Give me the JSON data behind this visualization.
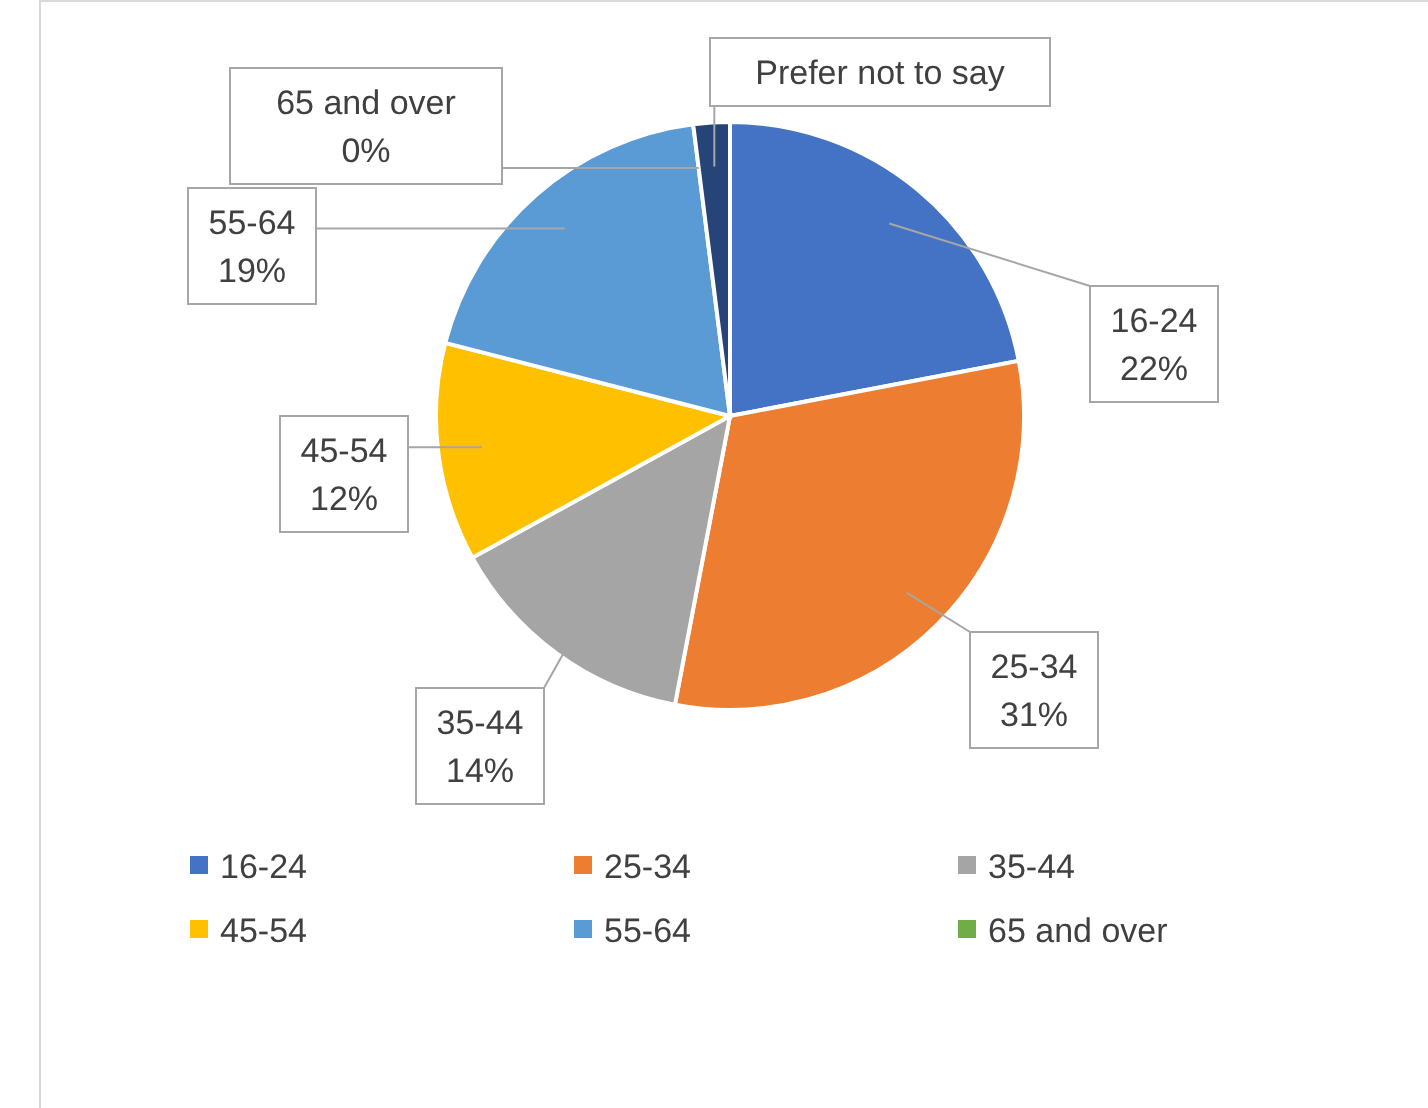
{
  "chart_data": {
    "type": "pie",
    "categories": [
      "16-24",
      "25-34",
      "35-44",
      "45-54",
      "55-64",
      "65 and over",
      "Prefer not to say"
    ],
    "values": [
      22,
      31,
      14,
      12,
      19,
      0,
      2
    ],
    "colors": [
      "#4472c4",
      "#ed7d31",
      "#a5a5a5",
      "#ffc000",
      "#5b9bd5",
      "#70ad47",
      "#264478"
    ],
    "value_labels": [
      "22%",
      "31%",
      "14%",
      "12%",
      "19%",
      "0%",
      null
    ],
    "legend": "bottom"
  }
}
